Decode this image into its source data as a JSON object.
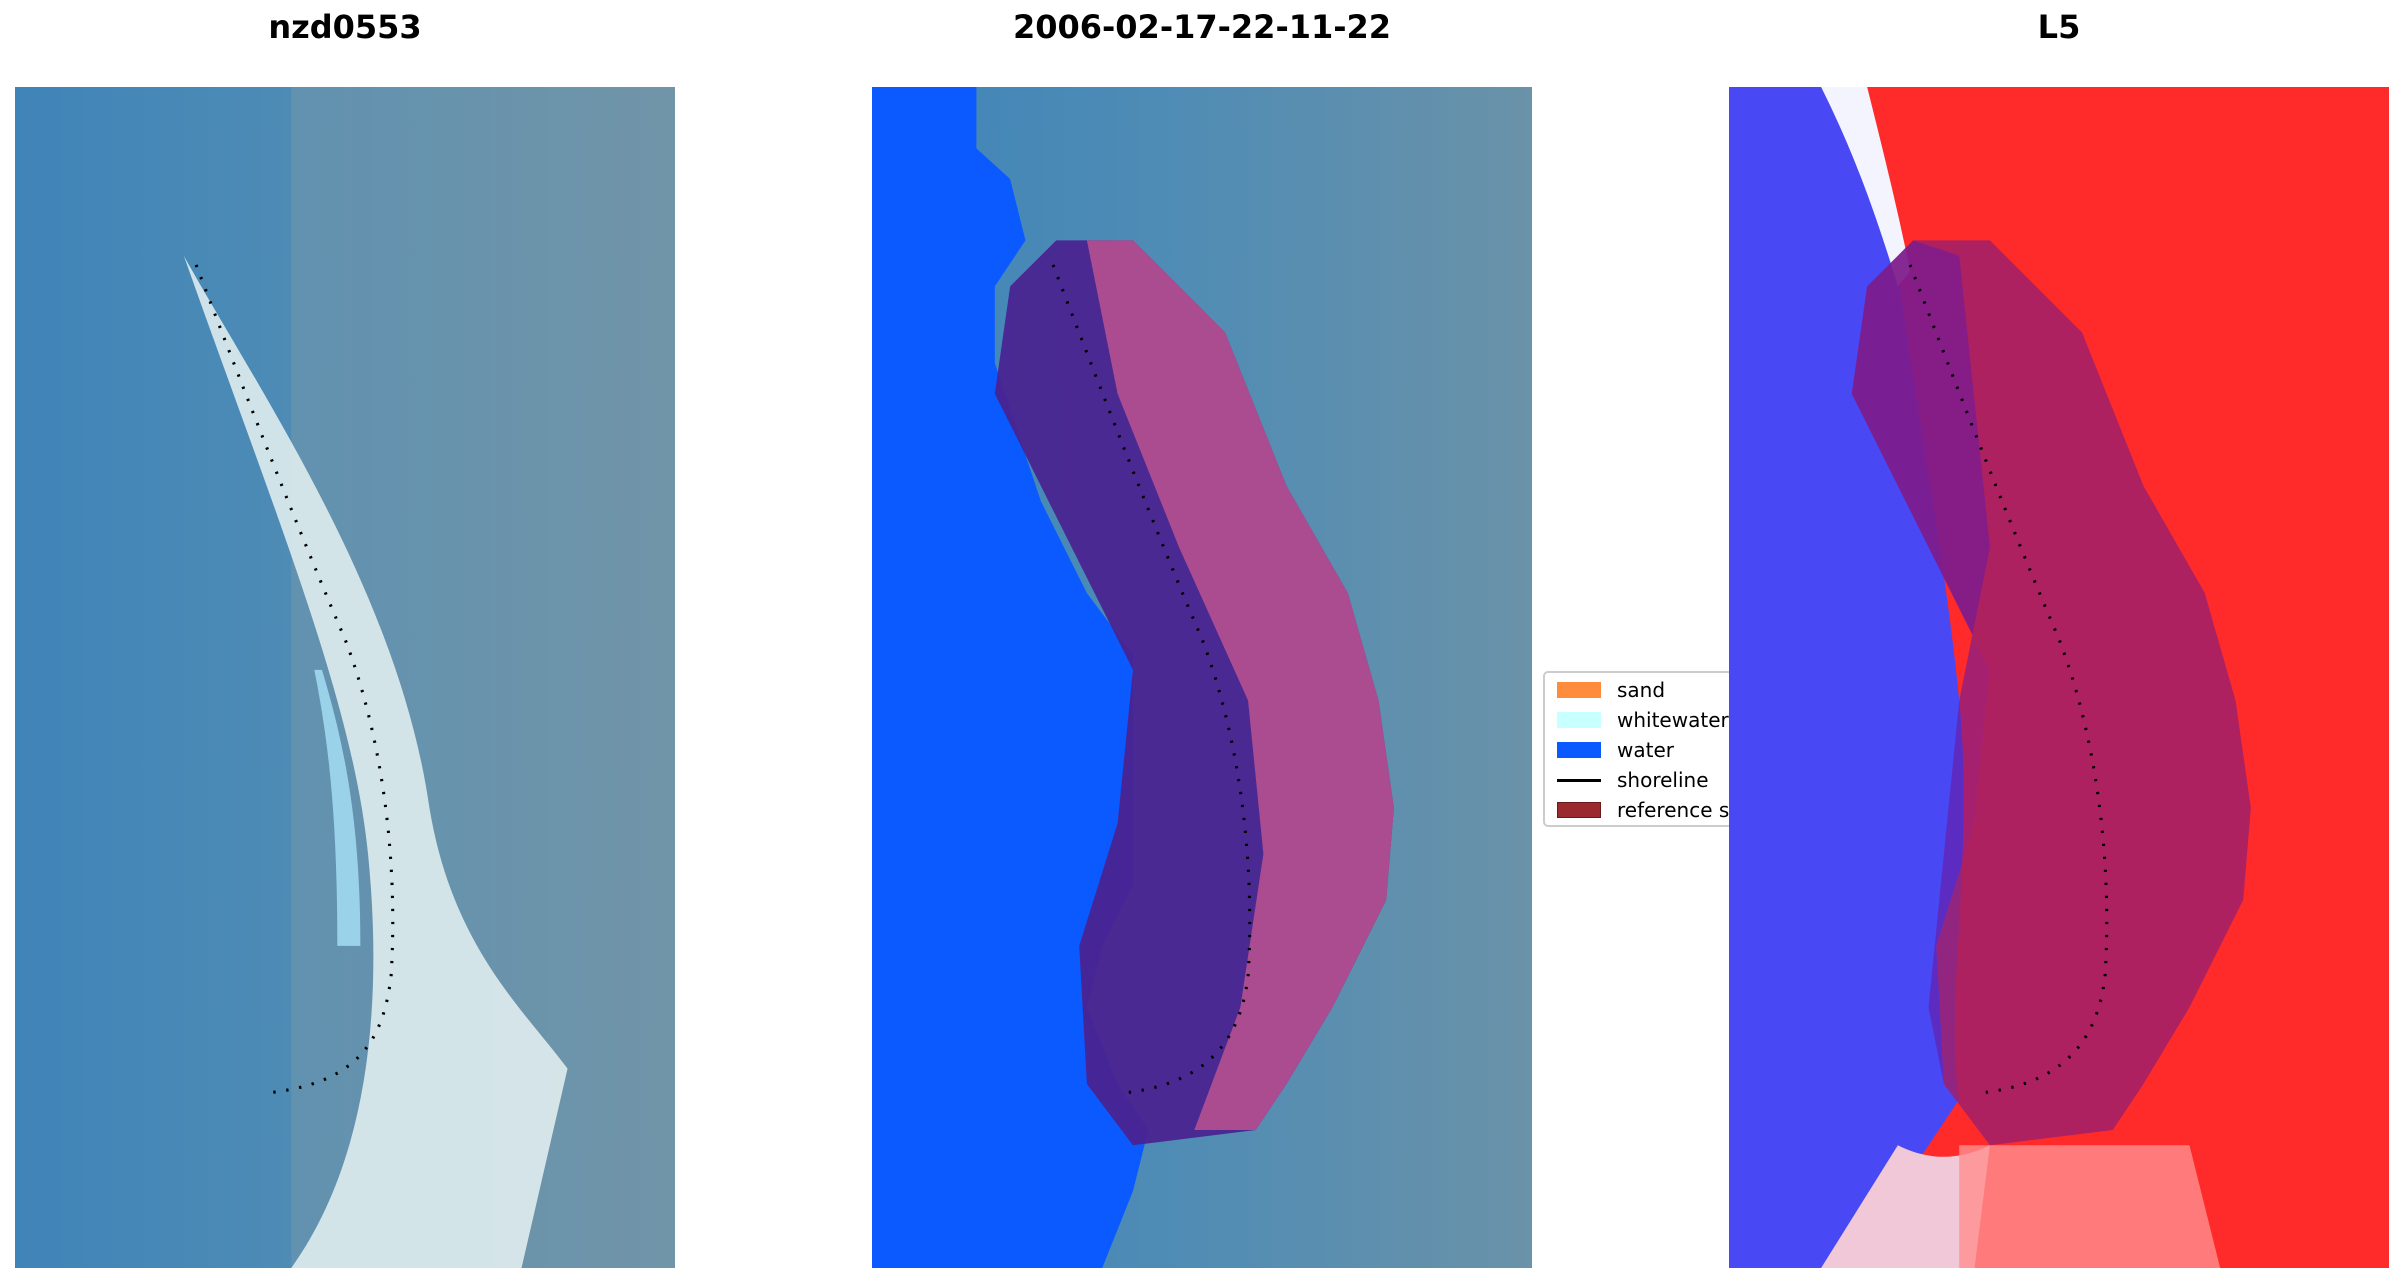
{
  "titles": {
    "left": "nzd0553",
    "middle": "2006-02-17-22-11-22",
    "right": "L5"
  },
  "legend": {
    "items": [
      {
        "label": "sand",
        "color": "#ff8c3c",
        "kind": "patch"
      },
      {
        "label": "whitewater",
        "color": "#c8ffff",
        "kind": "patch"
      },
      {
        "label": "water",
        "color": "#0a5aff",
        "kind": "patch"
      },
      {
        "label": "shoreline",
        "color": "#000000",
        "kind": "line"
      },
      {
        "label": "reference sl",
        "color": "#9a2a2e",
        "kind": "patch"
      }
    ]
  }
}
